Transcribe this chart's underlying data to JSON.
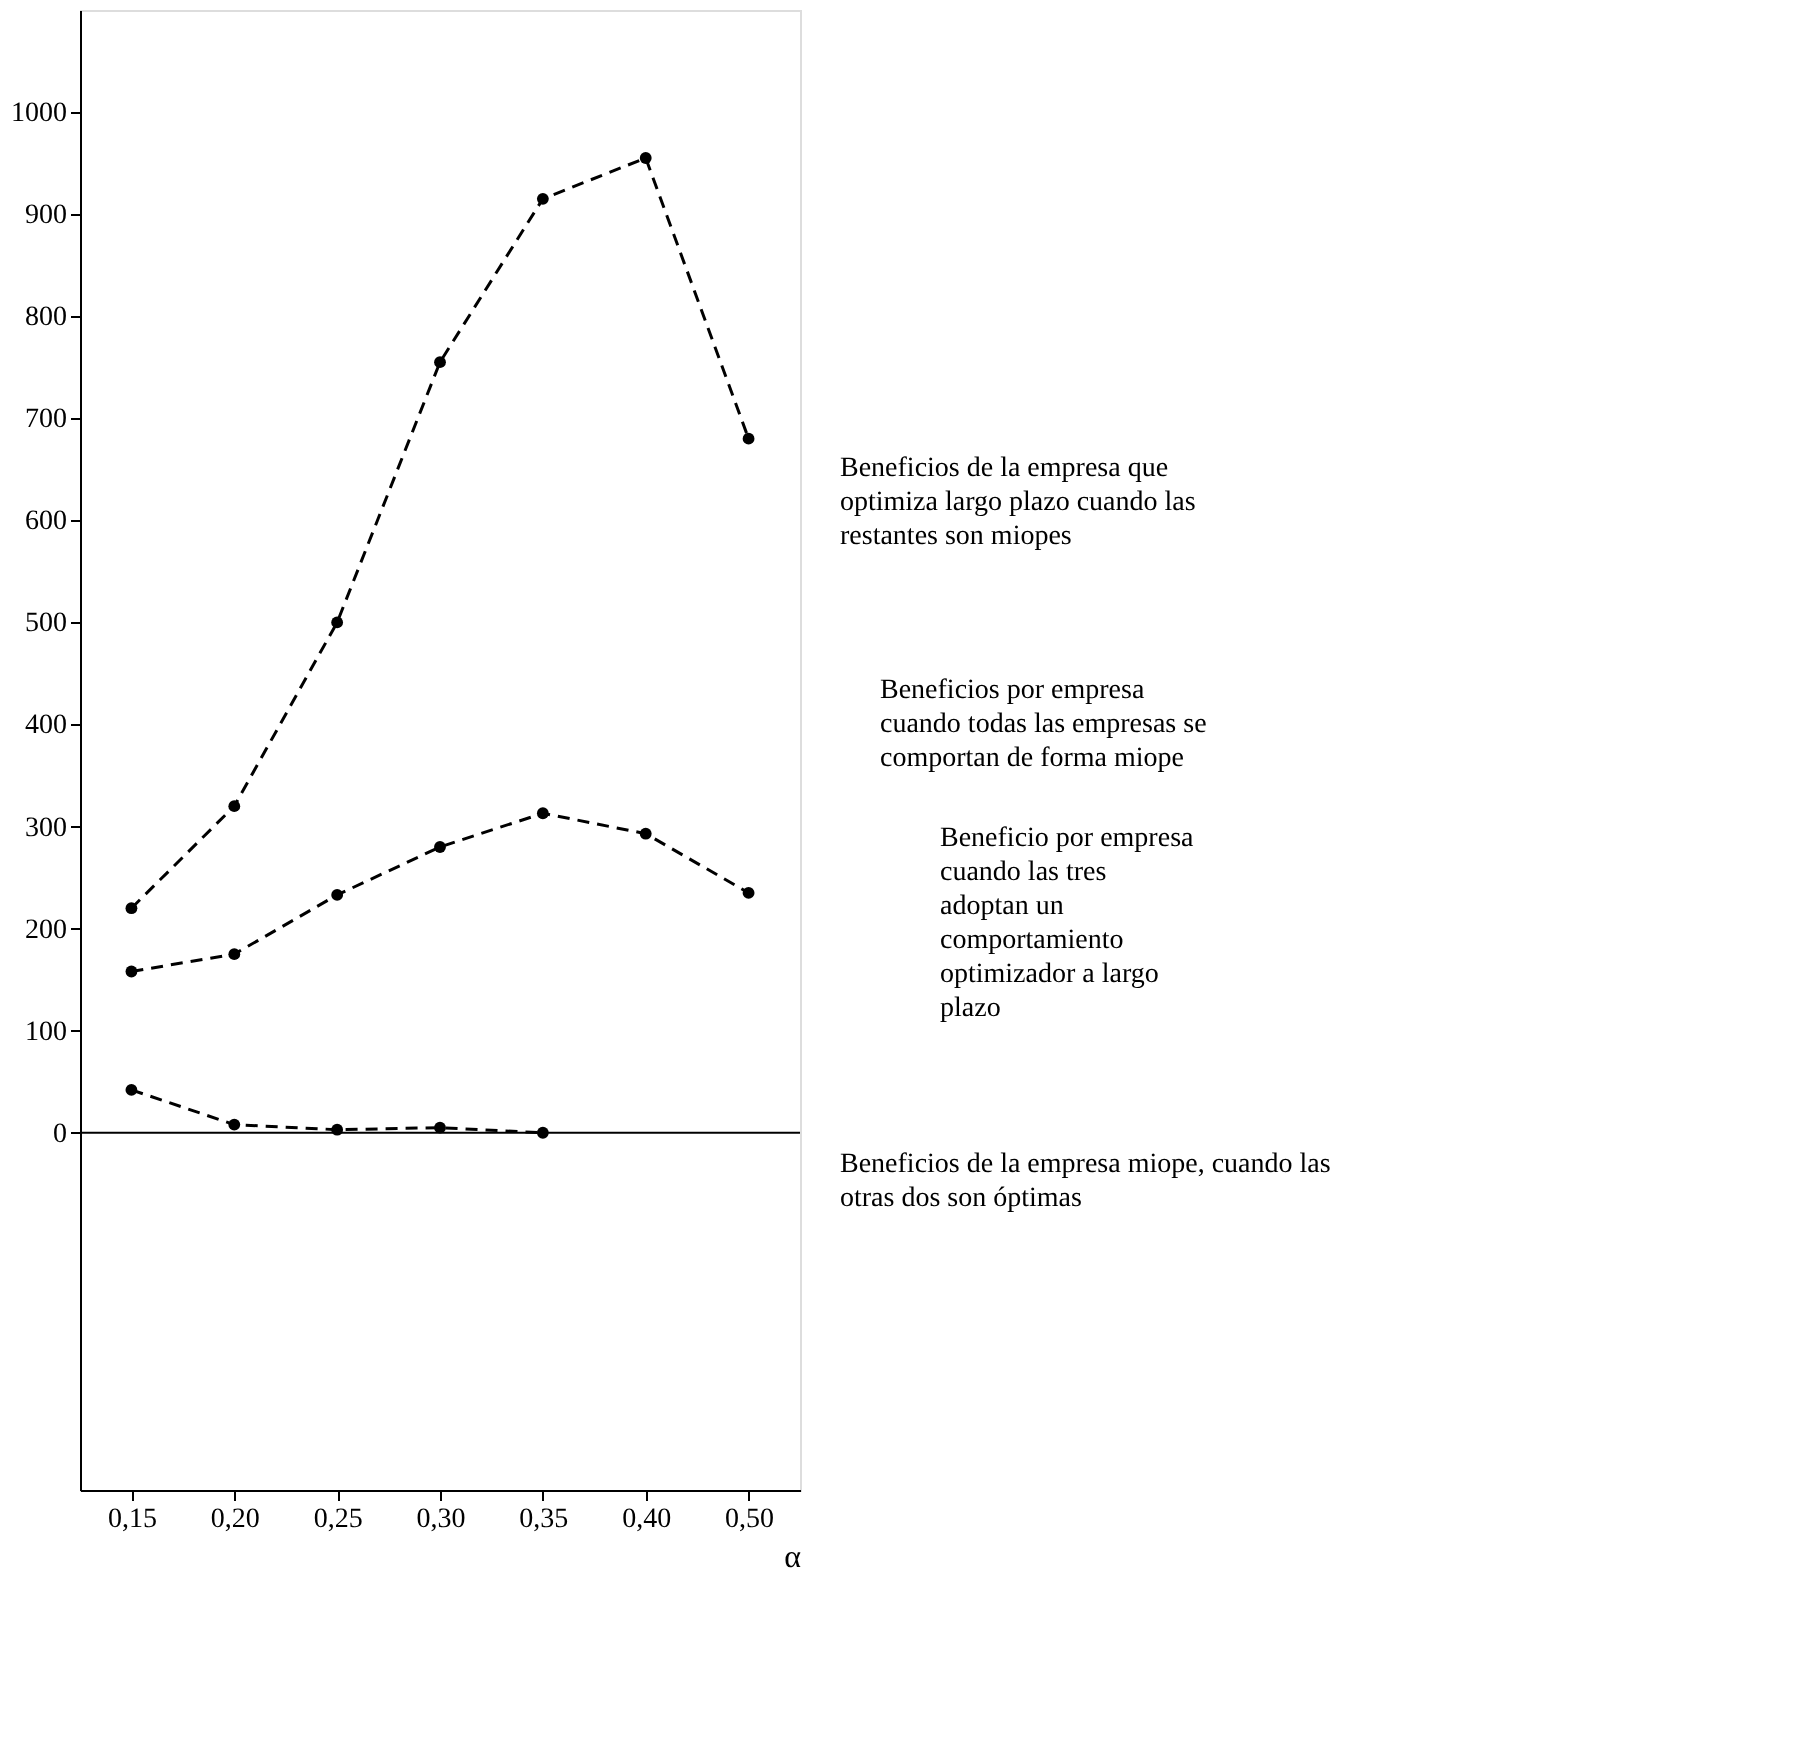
{
  "chart_data": {
    "type": "line",
    "categories": [
      "0,15",
      "0,20",
      "0,25",
      "0,30",
      "0,35",
      "0,40",
      "0,50"
    ],
    "xlabel": "α",
    "series": [
      {
        "color": "#000000",
        "values": [
          220,
          320,
          500,
          755,
          915,
          955,
          680
        ]
      },
      {
        "color": "#000000",
        "values": [
          158,
          175,
          233,
          280,
          313,
          293,
          235
        ]
      },
      {
        "color": "#000000",
        "values": [
          42,
          8,
          3,
          5,
          0,
          null,
          null
        ]
      }
    ],
    "ylim": [
      -350,
      1100
    ],
    "yticks": [
      0,
      100,
      200,
      300,
      400,
      500,
      600,
      700,
      800,
      900,
      1000
    ],
    "ref_lines": [
      {
        "axis": "y",
        "value": 0
      }
    ],
    "marker": "circle",
    "line_style": "dashed",
    "grid": false,
    "annotations": [
      "Beneficios de la empresa que\noptimiza largo plazo cuando las\nrestantes son miopes",
      "Beneficios por empresa\ncuando todas las empresas se\ncomportan de forma miope",
      "Beneficio por empresa\ncuando las tres\nadoptan un\ncomportamiento\noptimizador a largo\nplazo",
      "Beneficios de la empresa miope, cuando las\notras dos son óptimas"
    ]
  }
}
